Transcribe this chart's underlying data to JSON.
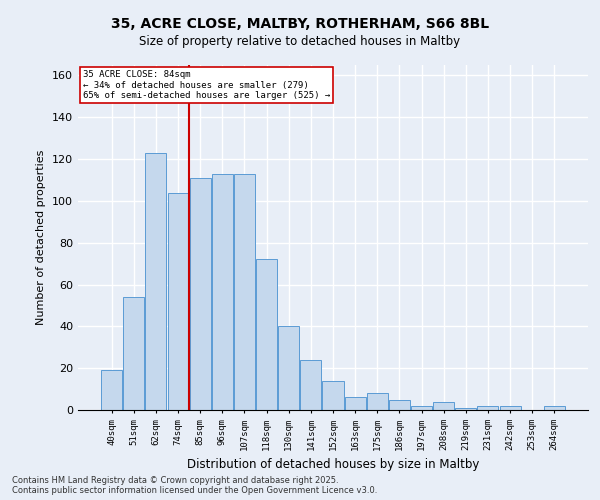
{
  "title_line1": "35, ACRE CLOSE, MALTBY, ROTHERHAM, S66 8BL",
  "title_line2": "Size of property relative to detached houses in Maltby",
  "xlabel": "Distribution of detached houses by size in Maltby",
  "ylabel": "Number of detached properties",
  "categories": [
    "40sqm",
    "51sqm",
    "62sqm",
    "74sqm",
    "85sqm",
    "96sqm",
    "107sqm",
    "118sqm",
    "130sqm",
    "141sqm",
    "152sqm",
    "163sqm",
    "175sqm",
    "186sqm",
    "197sqm",
    "208sqm",
    "219sqm",
    "231sqm",
    "242sqm",
    "253sqm",
    "264sqm"
  ],
  "values": [
    19,
    54,
    123,
    104,
    111,
    113,
    113,
    72,
    40,
    24,
    14,
    6,
    8,
    5,
    2,
    4,
    1,
    2,
    2,
    0,
    2
  ],
  "bar_color": "#c5d8ed",
  "bar_edge_color": "#5b9bd5",
  "background_color": "#e8eef7",
  "grid_color": "#ffffff",
  "vline_color": "#cc0000",
  "vline_x_index": 3.5,
  "annotation_text": "35 ACRE CLOSE: 84sqm\n← 34% of detached houses are smaller (279)\n65% of semi-detached houses are larger (525) →",
  "annotation_box_color": "#ffffff",
  "annotation_box_edge": "#cc0000",
  "ylim": [
    0,
    165
  ],
  "yticks": [
    0,
    20,
    40,
    60,
    80,
    100,
    120,
    140,
    160
  ],
  "footer_line1": "Contains HM Land Registry data © Crown copyright and database right 2025.",
  "footer_line2": "Contains public sector information licensed under the Open Government Licence v3.0."
}
